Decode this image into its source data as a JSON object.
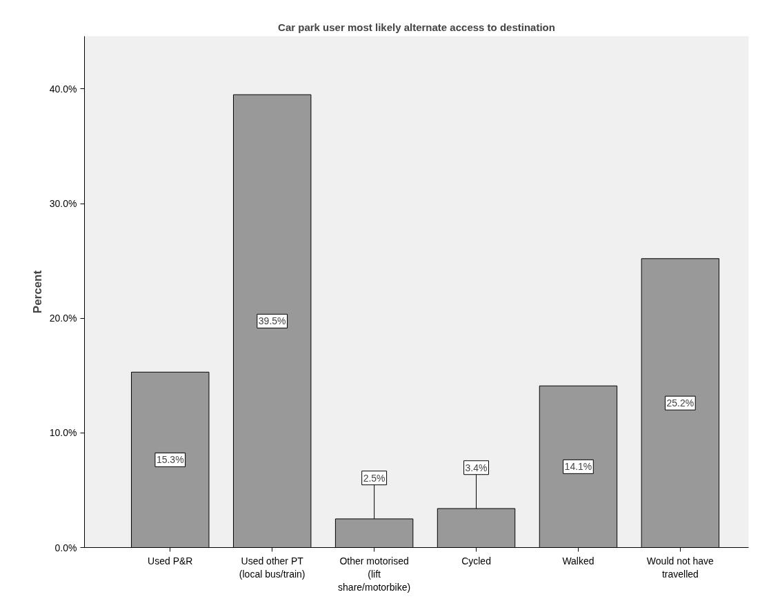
{
  "chart_data": {
    "type": "bar",
    "title": "Car park user most likely alternate access to destination",
    "ylabel": "Percent",
    "categories": [
      "Used P&R",
      "Used other PT (local bus/train)",
      "Other motorised (lift share/motorbike)",
      "Cycled",
      "Walked",
      "Would not have travelled"
    ],
    "values": [
      15.3,
      39.5,
      2.5,
      3.4,
      14.1,
      25.2
    ],
    "value_labels": [
      "15.3%",
      "39.5%",
      "2.5%",
      "3.4%",
      "14.1%",
      "25.2%"
    ],
    "color": "#999999",
    "ylim": [
      0,
      44.6
    ],
    "yticks": [
      {
        "value": 0,
        "label": "0.0%"
      },
      {
        "value": 10,
        "label": "10.0%"
      },
      {
        "value": 20,
        "label": "20.0%"
      },
      {
        "value": 30,
        "label": "30.0%"
      },
      {
        "value": 40,
        "label": "40.0%"
      }
    ],
    "grid": false
  }
}
